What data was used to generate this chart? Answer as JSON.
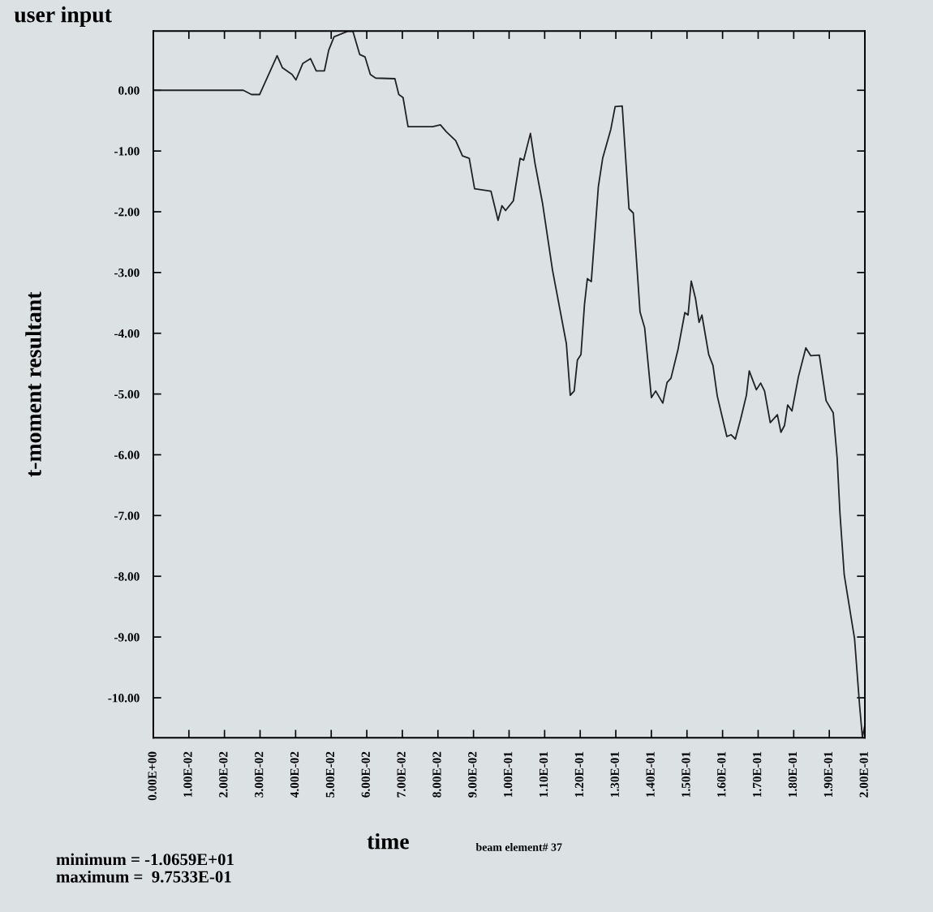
{
  "chart_data": {
    "type": "line",
    "title": "user input",
    "xlabel": "time",
    "ylabel": "t-moment resultant",
    "annotations": [
      "beam element# 37",
      "minimum = -1.0659E+01",
      "maximum =  9.7533E-01"
    ],
    "xlim": [
      0,
      0.2
    ],
    "ylim": [
      -10.659,
      0.97533
    ],
    "xticks": [
      {
        "value": 0,
        "label": "0.00E+00"
      },
      {
        "value": 0.01,
        "label": "1.00E-02"
      },
      {
        "value": 0.02,
        "label": "2.00E-02"
      },
      {
        "value": 0.03,
        "label": "3.00E-02"
      },
      {
        "value": 0.04,
        "label": "4.00E-02"
      },
      {
        "value": 0.05,
        "label": "5.00E-02"
      },
      {
        "value": 0.06,
        "label": "6.00E-02"
      },
      {
        "value": 0.07,
        "label": "7.00E-02"
      },
      {
        "value": 0.08,
        "label": "8.00E-02"
      },
      {
        "value": 0.09,
        "label": "9.00E-02"
      },
      {
        "value": 0.1,
        "label": "1.00E-01"
      },
      {
        "value": 0.11,
        "label": "1.10E-01"
      },
      {
        "value": 0.12,
        "label": "1.20E-01"
      },
      {
        "value": 0.13,
        "label": "1.30E-01"
      },
      {
        "value": 0.14,
        "label": "1.40E-01"
      },
      {
        "value": 0.15,
        "label": "1.50E-01"
      },
      {
        "value": 0.16,
        "label": "1.60E-01"
      },
      {
        "value": 0.17,
        "label": "1.70E-01"
      },
      {
        "value": 0.18,
        "label": "1.80E-01"
      },
      {
        "value": 0.19,
        "label": "1.90E-01"
      },
      {
        "value": 0.2,
        "label": "2.00E-01"
      }
    ],
    "yticks": [
      {
        "value": 0,
        "label": "0.00"
      },
      {
        "value": -1,
        "label": "-1.00"
      },
      {
        "value": -2,
        "label": "-2.00"
      },
      {
        "value": -3,
        "label": "-3.00"
      },
      {
        "value": -4,
        "label": "-4.00"
      },
      {
        "value": -5,
        "label": "-5.00"
      },
      {
        "value": -6,
        "label": "-6.00"
      },
      {
        "value": -7,
        "label": "-7.00"
      },
      {
        "value": -8,
        "label": "-8.00"
      },
      {
        "value": -9,
        "label": "-9.00"
      },
      {
        "value": -10,
        "label": "-10.00"
      }
    ],
    "grid": false,
    "marker": "none",
    "line_style": "solid",
    "series": [
      {
        "color": "#222222",
        "x": [
          0,
          0.0253,
          0.0276,
          0.0299,
          0.0348,
          0.0363,
          0.039,
          0.0401,
          0.042,
          0.0442,
          0.0458,
          0.0481,
          0.0493,
          0.0508,
          0.0546,
          0.0561,
          0.058,
          0.0595,
          0.061,
          0.0625,
          0.0679,
          0.069,
          0.0702,
          0.0716,
          0.0785,
          0.0807,
          0.0823,
          0.085,
          0.0869,
          0.0888,
          0.0903,
          0.0949,
          0.0969,
          0.098,
          0.099,
          0.1012,
          0.1031,
          0.1041,
          0.106,
          0.1073,
          0.1094,
          0.1122,
          0.1161,
          0.1172,
          0.1183,
          0.1192,
          0.1202,
          0.1212,
          0.122,
          0.1231,
          0.1251,
          0.1263,
          0.1286,
          0.1298,
          0.1318,
          0.1337,
          0.1349,
          0.1368,
          0.1381,
          0.14,
          0.1412,
          0.1432,
          0.1444,
          0.1455,
          0.1475,
          0.1494,
          0.1503,
          0.1512,
          0.1524,
          0.1534,
          0.1542,
          0.1561,
          0.1573,
          0.1585,
          0.1612,
          0.1624,
          0.1636,
          0.1651,
          0.1667,
          0.1675,
          0.1695,
          0.1707,
          0.1718,
          0.1734,
          0.1754,
          0.1764,
          0.1774,
          0.1783,
          0.1795,
          0.1813,
          0.1834,
          0.1848,
          0.1872,
          0.1891,
          0.1911,
          0.1922,
          0.193,
          0.1942,
          0.1971,
          0.1985,
          0.1993,
          0.2
        ],
        "values": [
          0,
          0,
          -0.07,
          -0.07,
          0.57,
          0.37,
          0.26,
          0.17,
          0.44,
          0.52,
          0.32,
          0.32,
          0.66,
          0.88,
          0.97,
          0.97,
          0.59,
          0.55,
          0.26,
          0.2,
          0.19,
          -0.07,
          -0.12,
          -0.6,
          -0.6,
          -0.57,
          -0.68,
          -0.83,
          -1.08,
          -1.12,
          -1.62,
          -1.66,
          -2.14,
          -1.9,
          -1.98,
          -1.82,
          -1.12,
          -1.15,
          -0.71,
          -1.21,
          -1.86,
          -2.96,
          -4.17,
          -5.02,
          -4.95,
          -4.44,
          -4.35,
          -3.52,
          -3.1,
          -3.15,
          -1.58,
          -1.12,
          -0.64,
          -0.27,
          -0.26,
          -1.95,
          -2.02,
          -3.65,
          -3.91,
          -5.06,
          -4.95,
          -5.15,
          -4.81,
          -4.74,
          -4.26,
          -3.66,
          -3.7,
          -3.14,
          -3.43,
          -3.82,
          -3.7,
          -4.35,
          -4.53,
          -5.03,
          -5.7,
          -5.67,
          -5.74,
          -5.41,
          -5.02,
          -4.62,
          -4.93,
          -4.82,
          -4.95,
          -5.47,
          -5.34,
          -5.63,
          -5.52,
          -5.18,
          -5.28,
          -4.72,
          -4.24,
          -4.37,
          -4.36,
          -5.11,
          -5.31,
          -6.05,
          -6.97,
          -7.98,
          -9.03,
          -10.12,
          -10.65,
          -10.45
        ]
      }
    ]
  }
}
